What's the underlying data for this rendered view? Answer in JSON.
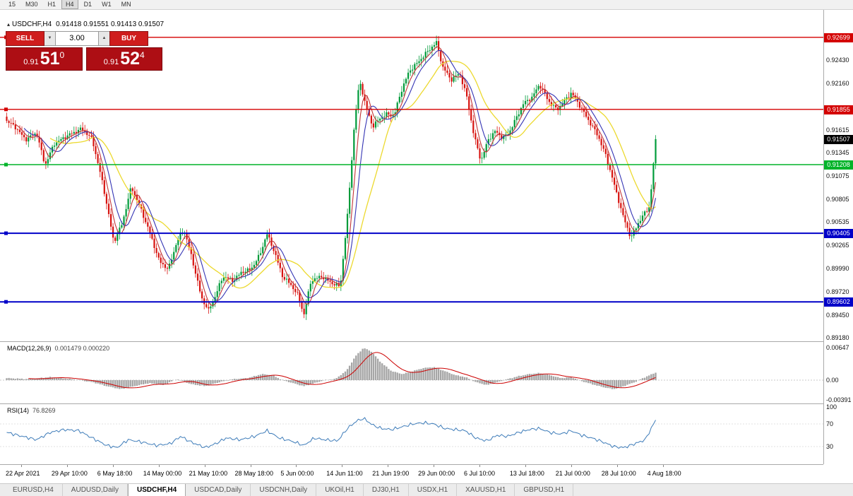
{
  "toolbar": {
    "timeframes": [
      "15",
      "M30",
      "H1",
      "H4",
      "D1",
      "W1",
      "MN"
    ],
    "active": "H4"
  },
  "chart_header": {
    "collapse_icon": "▴",
    "title": "USDCHF,H4",
    "ohlc": "0.91418 0.91551 0.91413 0.91507"
  },
  "trade_panel": {
    "sell_label": "SELL",
    "buy_label": "BUY",
    "volume": "3.00",
    "spinner_down": "▼",
    "spinner_up": "▲",
    "sell_price": {
      "prefix": "0.91",
      "big": "51",
      "sup": "0"
    },
    "buy_price": {
      "prefix": "0.91",
      "big": "52",
      "sup": "4"
    }
  },
  "colors": {
    "up": "#009b3a",
    "down": "#d7130f",
    "ma_fast": "#c23537",
    "ma_mid": "#3434b4",
    "ma_slow": "#ecd92e",
    "level_red": "#d40000",
    "level_green": "#00b42a",
    "level_blue": "#0000c8",
    "macd_hist": "#a6a6a6",
    "macd_signal": "#cc0000",
    "rsi_line": "#3e7cb9",
    "current_badge_bg": "#000000"
  },
  "chart_data": {
    "type": "candlestick",
    "symbol": "USDCHF",
    "timeframe": "H4",
    "current_ohlc": {
      "open": 0.91418,
      "high": 0.91551,
      "low": 0.91413,
      "close": 0.91507
    },
    "current_price_label": "0.91507",
    "ylim": [
      0.8914,
      0.9302
    ],
    "candle_count": 300,
    "levels": [
      {
        "label": "0.92699",
        "value": 0.92699,
        "color": "red"
      },
      {
        "label": "0.91855",
        "value": 0.91855,
        "color": "red"
      },
      {
        "label": "0.91208",
        "value": 0.91208,
        "color": "green"
      },
      {
        "label": "0.90405",
        "value": 0.90405,
        "color": "blue"
      },
      {
        "label": "0.89602",
        "value": 0.89602,
        "color": "blue"
      }
    ],
    "y_ticks": [
      "0.92430",
      "0.92160",
      "0.91615",
      "0.91345",
      "0.91075",
      "0.90805",
      "0.90535",
      "0.90265",
      "0.89990",
      "0.89720",
      "0.89450",
      "0.89180"
    ],
    "x_labels": [
      "22 Apr 2021",
      "29 Apr 10:00",
      "6 May 18:00",
      "14 May 00:00",
      "21 May 10:00",
      "28 May 18:00",
      "5 Jun 00:00",
      "14 Jun 11:00",
      "21 Jun 19:00",
      "29 Jun 00:00",
      "6 Jul 10:00",
      "13 Jul 18:00",
      "21 Jul 00:00",
      "28 Jul 10:00",
      "4 Aug 18:00"
    ],
    "price_path": [
      [
        0,
        0.9172
      ],
      [
        0.013,
        0.9165
      ],
      [
        0.029,
        0.915
      ],
      [
        0.046,
        0.9158
      ],
      [
        0.059,
        0.912
      ],
      [
        0.073,
        0.9145
      ],
      [
        0.094,
        0.9155
      ],
      [
        0.116,
        0.9163
      ],
      [
        0.132,
        0.915
      ],
      [
        0.149,
        0.9095
      ],
      [
        0.165,
        0.903
      ],
      [
        0.178,
        0.9052
      ],
      [
        0.192,
        0.9095
      ],
      [
        0.206,
        0.907
      ],
      [
        0.221,
        0.904
      ],
      [
        0.235,
        0.9008
      ],
      [
        0.249,
        0.8998
      ],
      [
        0.262,
        0.903
      ],
      [
        0.273,
        0.9045
      ],
      [
        0.286,
        0.901
      ],
      [
        0.3,
        0.8965
      ],
      [
        0.311,
        0.895
      ],
      [
        0.322,
        0.8968
      ],
      [
        0.333,
        0.899
      ],
      [
        0.349,
        0.8985
      ],
      [
        0.362,
        0.8995
      ],
      [
        0.376,
        0.8998
      ],
      [
        0.39,
        0.9015
      ],
      [
        0.401,
        0.904
      ],
      [
        0.412,
        0.902
      ],
      [
        0.425,
        0.899
      ],
      [
        0.438,
        0.898
      ],
      [
        0.449,
        0.8968
      ],
      [
        0.458,
        0.8945
      ],
      [
        0.469,
        0.8985
      ],
      [
        0.485,
        0.899
      ],
      [
        0.501,
        0.8982
      ],
      [
        0.514,
        0.8978
      ],
      [
        0.525,
        0.906
      ],
      [
        0.536,
        0.917
      ],
      [
        0.544,
        0.922
      ],
      [
        0.553,
        0.919
      ],
      [
        0.564,
        0.9165
      ],
      [
        0.575,
        0.9175
      ],
      [
        0.586,
        0.918
      ],
      [
        0.597,
        0.9178
      ],
      [
        0.607,
        0.9205
      ],
      [
        0.62,
        0.923
      ],
      [
        0.633,
        0.924
      ],
      [
        0.647,
        0.9252
      ],
      [
        0.662,
        0.9264
      ],
      [
        0.672,
        0.9235
      ],
      [
        0.685,
        0.922
      ],
      [
        0.698,
        0.9228
      ],
      [
        0.709,
        0.92
      ],
      [
        0.72,
        0.9155
      ],
      [
        0.731,
        0.9125
      ],
      [
        0.742,
        0.915
      ],
      [
        0.753,
        0.916
      ],
      [
        0.764,
        0.9152
      ],
      [
        0.774,
        0.9158
      ],
      [
        0.785,
        0.9175
      ],
      [
        0.796,
        0.9192
      ],
      [
        0.81,
        0.92
      ],
      [
        0.821,
        0.9215
      ],
      [
        0.835,
        0.9195
      ],
      [
        0.848,
        0.9185
      ],
      [
        0.859,
        0.9195
      ],
      [
        0.87,
        0.9205
      ],
      [
        0.883,
        0.919
      ],
      [
        0.897,
        0.9172
      ],
      [
        0.911,
        0.9155
      ],
      [
        0.924,
        0.913
      ],
      [
        0.937,
        0.9095
      ],
      [
        0.95,
        0.906
      ],
      [
        0.962,
        0.9035
      ],
      [
        0.973,
        0.9052
      ],
      [
        0.984,
        0.9065
      ],
      [
        0.991,
        0.9072
      ],
      [
        1,
        0.91507
      ]
    ],
    "indicators": {
      "macd": {
        "label": "MACD(12,26,9)",
        "values_text": "0.001479 0.000220",
        "main_value": 0.001479,
        "signal_value": 0.00022,
        "ticks": [
          "0.00647",
          "0.00",
          "-0.00391"
        ],
        "path": [
          [
            0,
            0.0004
          ],
          [
            0.035,
            0.0002
          ],
          [
            0.067,
            0.0006
          ],
          [
            0.1,
            0.0002
          ],
          [
            0.132,
            -0.0004
          ],
          [
            0.154,
            -0.0012
          ],
          [
            0.176,
            -0.0018
          ],
          [
            0.197,
            -0.0012
          ],
          [
            0.219,
            -0.0006
          ],
          [
            0.241,
            -0.001
          ],
          [
            0.262,
            0.0002
          ],
          [
            0.284,
            -0.0008
          ],
          [
            0.306,
            -0.0012
          ],
          [
            0.328,
            -0.0004
          ],
          [
            0.349,
            0.0002
          ],
          [
            0.371,
            0.0004
          ],
          [
            0.393,
            0.0012
          ],
          [
            0.409,
            0.001
          ],
          [
            0.425,
            0
          ],
          [
            0.441,
            -0.0006
          ],
          [
            0.458,
            -0.0012
          ],
          [
            0.474,
            -0.0006
          ],
          [
            0.49,
            0
          ],
          [
            0.506,
            0.0002
          ],
          [
            0.523,
            0.0018
          ],
          [
            0.539,
            0.005
          ],
          [
            0.55,
            0.0064
          ],
          [
            0.561,
            0.0058
          ],
          [
            0.577,
            0.0035
          ],
          [
            0.593,
            0.0018
          ],
          [
            0.61,
            0.0012
          ],
          [
            0.626,
            0.0018
          ],
          [
            0.642,
            0.0024
          ],
          [
            0.658,
            0.0026
          ],
          [
            0.675,
            0.0018
          ],
          [
            0.691,
            0.001
          ],
          [
            0.707,
            0.0006
          ],
          [
            0.723,
            -0.0004
          ],
          [
            0.74,
            -0.001
          ],
          [
            0.756,
            -0.0004
          ],
          [
            0.772,
            0.0002
          ],
          [
            0.789,
            0.0008
          ],
          [
            0.805,
            0.0012
          ],
          [
            0.821,
            0.0014
          ],
          [
            0.837,
            0.001
          ],
          [
            0.854,
            0.0004
          ],
          [
            0.87,
            0.0006
          ],
          [
            0.886,
            -0.0002
          ],
          [
            0.902,
            -0.0008
          ],
          [
            0.919,
            -0.0014
          ],
          [
            0.935,
            -0.0018
          ],
          [
            0.951,
            -0.0012
          ],
          [
            0.968,
            -0.0004
          ],
          [
            0.984,
            0.0006
          ],
          [
            1,
            0.0015
          ]
        ]
      },
      "rsi": {
        "label": "RSI(14)",
        "value": 76.8269,
        "value_text": "76.8269",
        "ticks": [
          "100",
          "70",
          "30"
        ],
        "levels": [
          70,
          30
        ],
        "path": [
          [
            0,
            55
          ],
          [
            0.024,
            48
          ],
          [
            0.046,
            42
          ],
          [
            0.067,
            55
          ],
          [
            0.089,
            60
          ],
          [
            0.111,
            58
          ],
          [
            0.132,
            45
          ],
          [
            0.154,
            32
          ],
          [
            0.17,
            28
          ],
          [
            0.187,
            42
          ],
          [
            0.208,
            38
          ],
          [
            0.23,
            32
          ],
          [
            0.252,
            35
          ],
          [
            0.268,
            48
          ],
          [
            0.284,
            38
          ],
          [
            0.306,
            28
          ],
          [
            0.322,
            35
          ],
          [
            0.338,
            45
          ],
          [
            0.36,
            42
          ],
          [
            0.382,
            48
          ],
          [
            0.401,
            58
          ],
          [
            0.42,
            45
          ],
          [
            0.438,
            40
          ],
          [
            0.458,
            32
          ],
          [
            0.474,
            45
          ],
          [
            0.49,
            42
          ],
          [
            0.51,
            40
          ],
          [
            0.525,
            62
          ],
          [
            0.539,
            75
          ],
          [
            0.55,
            80
          ],
          [
            0.564,
            68
          ],
          [
            0.577,
            62
          ],
          [
            0.593,
            60
          ],
          [
            0.61,
            65
          ],
          [
            0.626,
            70
          ],
          [
            0.642,
            72
          ],
          [
            0.658,
            70
          ],
          [
            0.675,
            62
          ],
          [
            0.691,
            60
          ],
          [
            0.707,
            58
          ],
          [
            0.723,
            45
          ],
          [
            0.74,
            40
          ],
          [
            0.756,
            50
          ],
          [
            0.772,
            48
          ],
          [
            0.789,
            55
          ],
          [
            0.805,
            60
          ],
          [
            0.821,
            62
          ],
          [
            0.837,
            55
          ],
          [
            0.854,
            52
          ],
          [
            0.87,
            58
          ],
          [
            0.886,
            50
          ],
          [
            0.902,
            45
          ],
          [
            0.919,
            38
          ],
          [
            0.935,
            30
          ],
          [
            0.951,
            28
          ],
          [
            0.968,
            35
          ],
          [
            0.984,
            42
          ],
          [
            1,
            76.8
          ]
        ]
      }
    }
  },
  "tabs": {
    "items": [
      "EURUSD,H4",
      "AUDUSD,Daily",
      "USDCHF,H4",
      "USDCAD,Daily",
      "USDCNH,Daily",
      "UKOil,H1",
      "DJ30,H1",
      "USDX,H1",
      "XAUUSD,H1",
      "GBPUSD,H1"
    ],
    "active_index": 2
  }
}
